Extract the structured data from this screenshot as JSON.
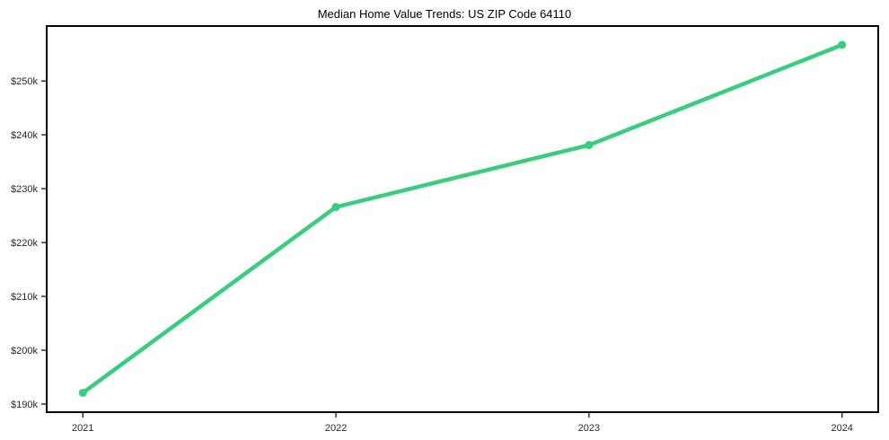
{
  "colors": {
    "line": "#38cd7f",
    "marker": "#38cd7f",
    "axis": "#000000",
    "tick_label": "#262626",
    "background": "#ffffff"
  },
  "chart_data": {
    "type": "line",
    "title": "Median Home Value Trends: US ZIP Code 64110",
    "x": [
      2021,
      2022,
      2023,
      2024
    ],
    "x_tick_labels": [
      "2021",
      "2022",
      "2023",
      "2024"
    ],
    "series": [
      {
        "name": "Median Home Value",
        "values": [
          192100,
          226600,
          238100,
          256700
        ]
      }
    ],
    "y_ticks": [
      190000,
      200000,
      210000,
      220000,
      230000,
      240000,
      250000
    ],
    "y_tick_labels": [
      "$190k",
      "$200k",
      "$210k",
      "$220k",
      "$230k",
      "$240k",
      "$250k"
    ],
    "xlabel": "",
    "ylabel": "",
    "xlim": [
      2020.857,
      2024.143
    ],
    "ylim": [
      188500,
      260200
    ],
    "grid": false,
    "legend": "none",
    "marker": "circle",
    "line_width": 4.5,
    "marker_radius": 4.5
  }
}
